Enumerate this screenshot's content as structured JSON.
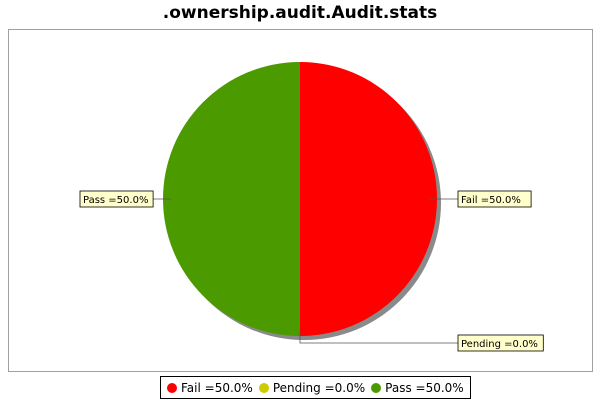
{
  "chart_data": {
    "type": "pie",
    "title": ".ownership.audit.Audit.stats",
    "slices": [
      {
        "name": "Fail",
        "value": 50.0,
        "label": "Fail =50.0%",
        "color": "#ff0000"
      },
      {
        "name": "Pending",
        "value": 0.0,
        "label": "Pending =0.0%",
        "color": "#cccc00"
      },
      {
        "name": "Pass",
        "value": 50.0,
        "label": "Pass =50.0%",
        "color": "#4a9a00"
      }
    ],
    "legend": {
      "position": "bottom",
      "entries": [
        "Fail =50.0%",
        "Pending =0.0%",
        "Pass =50.0%"
      ]
    }
  }
}
